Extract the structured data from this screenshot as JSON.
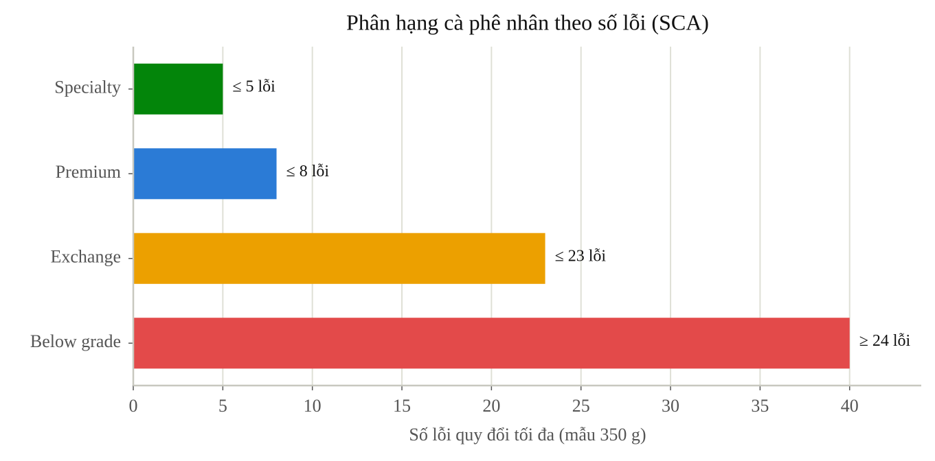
{
  "chart_data": {
    "type": "hbar",
    "title": "Phân hạng cà phê nhân theo số lỗi (SCA)",
    "x_label": "Số lỗi quy đổi tối đa (mẫu 350 g)",
    "categories": [
      "Specialty",
      "Premium",
      "Exchange",
      "Below grade"
    ],
    "values": [
      5,
      8,
      23,
      40
    ],
    "colors": [
      "#03850a",
      "#2b7bd6",
      "#eca000",
      "#e34a4a"
    ],
    "annotations": [
      "≤ 5 lỗi",
      "≤ 8 lỗi",
      "≤ 23 lỗi",
      "≥ 24 lỗi"
    ],
    "xlim": [
      0,
      44
    ],
    "xticks": [
      0,
      5,
      10,
      15,
      20,
      25,
      30,
      35,
      40
    ],
    "grid": true
  }
}
